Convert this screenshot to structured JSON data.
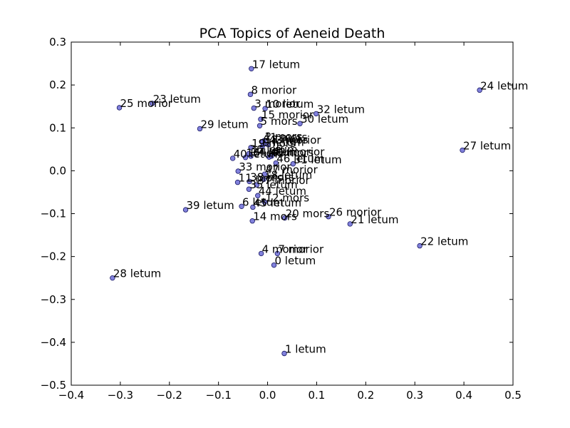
{
  "chart_data": {
    "type": "scatter",
    "title": "PCA Topics of Aeneid Death",
    "xlabel": "",
    "ylabel": "",
    "xlim": [
      -0.4,
      0.5
    ],
    "ylim": [
      -0.5,
      0.3
    ],
    "xticks": [
      "−0.4",
      "−0.3",
      "−0.2",
      "−0.1",
      "0.0",
      "0.1",
      "0.2",
      "0.3",
      "0.4",
      "0.5"
    ],
    "yticks": [
      "−0.5",
      "−0.4",
      "−0.3",
      "−0.2",
      "−0.1",
      "0.0",
      "0.1",
      "0.2",
      "0.3"
    ],
    "grid": false,
    "point_color": "#6b6bd6",
    "points": [
      {
        "label": "0 letum",
        "x": 0.013,
        "y": -0.22
      },
      {
        "label": "1 letum",
        "x": 0.034,
        "y": -0.426
      },
      {
        "label": "2 mors",
        "x": -0.007,
        "y": 0.07
      },
      {
        "label": "3 morior",
        "x": -0.028,
        "y": 0.146
      },
      {
        "label": "4 morior",
        "x": -0.013,
        "y": -0.193
      },
      {
        "label": "5 mors",
        "x": -0.016,
        "y": 0.105
      },
      {
        "label": "6 letum",
        "x": -0.053,
        "y": -0.083
      },
      {
        "label": "7 morior",
        "x": 0.02,
        "y": -0.193
      },
      {
        "label": "8 morior",
        "x": -0.035,
        "y": 0.178
      },
      {
        "label": "9 letum",
        "x": -0.011,
        "y": 0.056
      },
      {
        "label": "10 letum",
        "x": -0.005,
        "y": 0.145
      },
      {
        "label": "11 mors",
        "x": -0.061,
        "y": -0.027
      },
      {
        "label": "12 mors",
        "x": -0.006,
        "y": -0.073
      },
      {
        "label": "13 mors",
        "x": -0.008,
        "y": 0.062
      },
      {
        "label": "14 mors",
        "x": -0.031,
        "y": -0.117
      },
      {
        "label": "15 morior",
        "x": -0.014,
        "y": 0.12
      },
      {
        "label": "16 letum",
        "x": -0.045,
        "y": 0.031
      },
      {
        "label": "17 letum",
        "x": -0.033,
        "y": 0.238
      },
      {
        "label": "18 letum",
        "x": -0.008,
        "y": -0.02
      },
      {
        "label": "19 mors",
        "x": -0.034,
        "y": 0.054
      },
      {
        "label": "20 mors",
        "x": 0.035,
        "y": -0.11
      },
      {
        "label": "21 letum",
        "x": 0.168,
        "y": -0.124
      },
      {
        "label": "22 letum",
        "x": 0.31,
        "y": -0.175
      },
      {
        "label": "23 letum",
        "x": -0.235,
        "y": 0.157
      },
      {
        "label": "24 letum",
        "x": 0.432,
        "y": 0.188
      },
      {
        "label": "25 morior",
        "x": -0.302,
        "y": 0.147
      },
      {
        "label": "26 morior",
        "x": 0.124,
        "y": -0.107
      },
      {
        "label": "27 letum",
        "x": 0.397,
        "y": 0.048
      },
      {
        "label": "28 letum",
        "x": -0.316,
        "y": -0.25
      },
      {
        "label": "29 letum",
        "x": -0.138,
        "y": 0.098
      },
      {
        "label": "30 letum",
        "x": 0.066,
        "y": 0.11
      },
      {
        "label": "31 letum",
        "x": 0.052,
        "y": 0.016
      },
      {
        "label": "32 letum",
        "x": 0.099,
        "y": 0.133
      },
      {
        "label": "33 morior",
        "x": -0.06,
        "y": -0.001
      },
      {
        "label": "34 letum",
        "x": -0.034,
        "y": 0.034
      },
      {
        "label": "35 letum",
        "x": -0.038,
        "y": -0.043
      },
      {
        "label": "36 letum",
        "x": -0.038,
        "y": 0.04
      },
      {
        "label": "37 morior",
        "x": -0.022,
        "y": -0.033
      },
      {
        "label": "38 mors",
        "x": -0.037,
        "y": -0.025
      },
      {
        "label": "39 letum",
        "x": -0.167,
        "y": -0.091
      },
      {
        "label": "40 letum",
        "x": -0.071,
        "y": 0.029
      },
      {
        "label": "41 mors",
        "x": -0.01,
        "y": 0.068
      },
      {
        "label": "42 morior",
        "x": 0.008,
        "y": 0.034
      },
      {
        "label": "43 morior",
        "x": 0.001,
        "y": 0.061
      },
      {
        "label": "44 letum",
        "x": -0.02,
        "y": -0.058
      },
      {
        "label": "45 letum",
        "x": -0.03,
        "y": -0.085
      },
      {
        "label": "46 letum",
        "x": 0.017,
        "y": 0.018
      },
      {
        "label": "47 morior",
        "x": -0.006,
        "y": -0.008
      },
      {
        "label": "48 mors",
        "x": 0.003,
        "y": 0.032
      }
    ]
  }
}
